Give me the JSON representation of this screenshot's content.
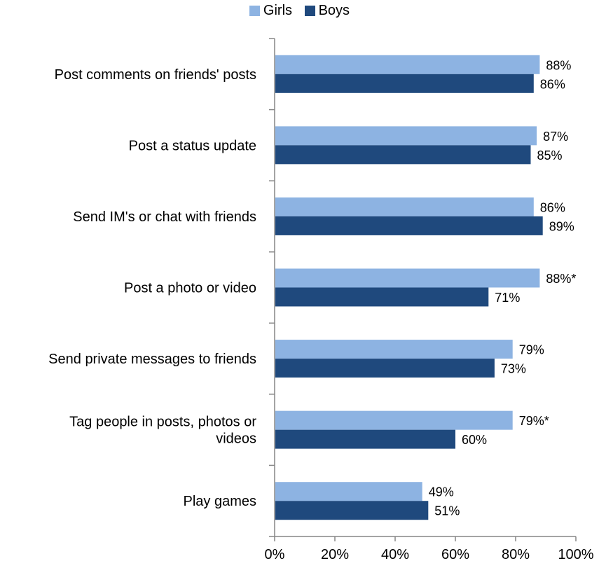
{
  "chart_data": {
    "type": "bar",
    "orientation": "horizontal",
    "categories": [
      [
        "Post comments on friends' posts"
      ],
      [
        "Post a status update"
      ],
      [
        "Send IM's or chat with friends"
      ],
      [
        "Post a photo or video"
      ],
      [
        "Send private messages to friends"
      ],
      [
        "Tag people in posts, photos or",
        "videos"
      ],
      [
        "Play games"
      ]
    ],
    "series": [
      {
        "name": "Girls",
        "color": "#8db3e2",
        "values": [
          88,
          87,
          86,
          88,
          79,
          79,
          49
        ],
        "labels": [
          "88%",
          "87%",
          "86%",
          "88%*",
          "79%",
          "79%*",
          "49%"
        ]
      },
      {
        "name": "Boys",
        "color": "#1f497d",
        "values": [
          86,
          85,
          89,
          71,
          73,
          60,
          51
        ],
        "labels": [
          "86%",
          "85%",
          "89%",
          "71%",
          "73%",
          "60%",
          "51%"
        ]
      }
    ],
    "xlim": [
      0,
      100
    ],
    "xticks": [
      "0%",
      "20%",
      "40%",
      "60%",
      "80%",
      "100%"
    ],
    "legend": "top-center",
    "grid": false
  }
}
